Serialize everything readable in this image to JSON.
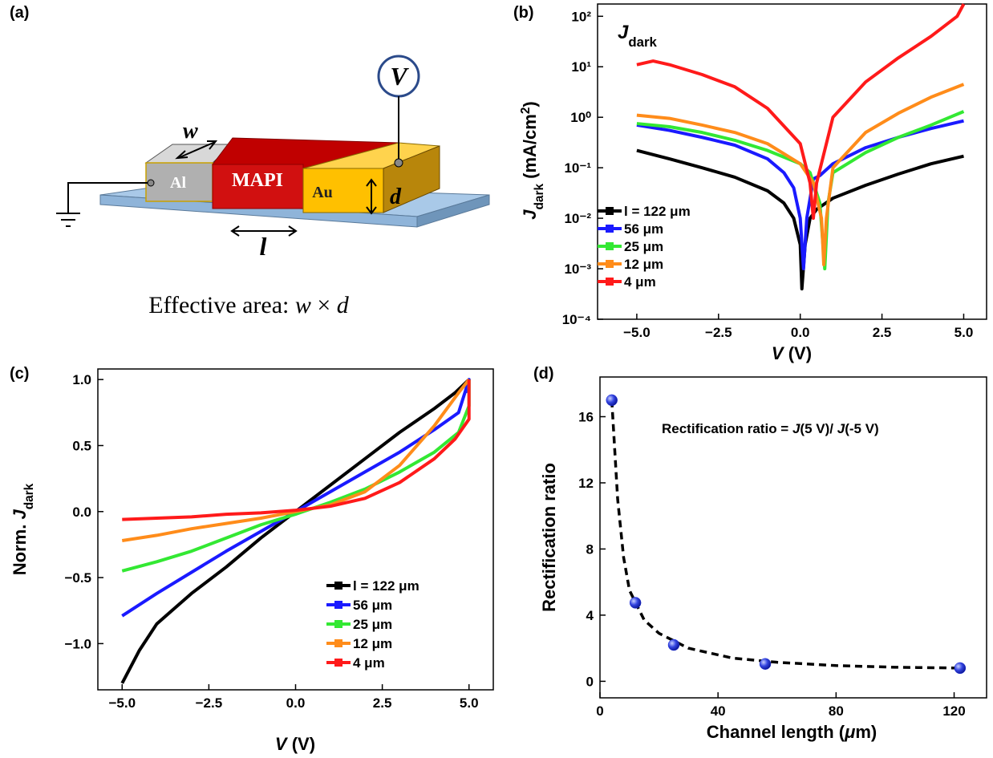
{
  "panel_a": {
    "panel_label": "(a)",
    "voltmeter": "V",
    "width_label": "w",
    "length_label": "l",
    "thickness_label": "d",
    "electrode_left": "Al",
    "active_layer": "MAPI",
    "electrode_right": "Au",
    "caption": [
      "Effective area: ",
      "w",
      " × ",
      "d"
    ]
  },
  "chart_data": [
    {
      "type": "line",
      "panel_label": "(b)",
      "title": [
        "J",
        "dark"
      ],
      "xlabel": [
        "V",
        " (V)"
      ],
      "ylabel": [
        "J",
        "dark",
        " (mA/cm",
        "2",
        ")"
      ],
      "yscale": "log",
      "xlim": [
        -6.2,
        5.7
      ],
      "ylim": [
        0.0001,
        175
      ],
      "xticks": [
        {
          "value": -5,
          "label": "−5.0"
        },
        {
          "value": -2.5,
          "label": "−2.5"
        },
        {
          "value": 0,
          "label": "0.0"
        },
        2.5,
        {
          "value": 5,
          "label": "5.0"
        }
      ],
      "yticks": [
        {
          "value": 0.0001,
          "label": "10⁻⁴"
        },
        {
          "value": 0.001,
          "label": "10⁻³"
        },
        {
          "value": 0.01,
          "label": "10⁻²"
        },
        {
          "value": 0.1,
          "label": "10⁻¹"
        },
        {
          "value": 1,
          "label": "10⁰"
        },
        {
          "value": 10,
          "label": "10¹"
        },
        {
          "value": 100,
          "label": "10²"
        }
      ],
      "legend": "lower-left",
      "series": [
        {
          "name": "l = 122 μm",
          "color": "#000000",
          "x": [
            -5,
            -4,
            -3,
            -2,
            -1,
            -0.5,
            -0.2,
            0,
            0.05,
            0.15,
            0.3,
            0.5,
            1,
            2,
            3,
            4,
            5
          ],
          "values": [
            0.22,
            0.15,
            0.1,
            0.065,
            0.035,
            0.02,
            0.01,
            0.003,
            0.0004,
            0.003,
            0.01,
            0.015,
            0.025,
            0.045,
            0.075,
            0.12,
            0.17
          ]
        },
        {
          "name": "56 μm",
          "color": "#1a1aff",
          "x": [
            -5,
            -4,
            -3,
            -2,
            -1,
            -0.5,
            -0.2,
            0,
            0.1,
            0.2,
            0.4,
            0.6,
            1,
            2,
            3,
            4,
            5
          ],
          "values": [
            0.7,
            0.55,
            0.4,
            0.28,
            0.15,
            0.08,
            0.04,
            0.01,
            0.001,
            0.01,
            0.06,
            0.07,
            0.12,
            0.25,
            0.4,
            0.6,
            0.85
          ]
        },
        {
          "name": "25 μm",
          "color": "#33e833",
          "x": [
            -5,
            -4,
            -3,
            -2,
            -1,
            0,
            0.3,
            0.6,
            0.75,
            0.85,
            1,
            2,
            3,
            4,
            5
          ],
          "values": [
            0.75,
            0.65,
            0.5,
            0.35,
            0.22,
            0.12,
            0.08,
            0.02,
            0.001,
            0.02,
            0.08,
            0.2,
            0.4,
            0.7,
            1.3
          ]
        },
        {
          "name": "12 μm",
          "color": "#ff8c1a",
          "x": [
            -5,
            -4,
            -3,
            -2,
            -1,
            0,
            0.4,
            0.65,
            0.72,
            0.8,
            1,
            2,
            3,
            4,
            5
          ],
          "values": [
            1.1,
            0.95,
            0.7,
            0.5,
            0.3,
            0.12,
            0.05,
            0.01,
            0.0012,
            0.01,
            0.1,
            0.5,
            1.2,
            2.5,
            4.5
          ]
        },
        {
          "name": "4 μm",
          "color": "#ff1a1a",
          "x": [
            -5,
            -4.5,
            -4,
            -3,
            -2,
            -1,
            0,
            0.3,
            0.4,
            0.5,
            1,
            2,
            3,
            4,
            4.8,
            5
          ],
          "values": [
            11,
            13,
            11,
            7,
            4,
            1.5,
            0.3,
            0.05,
            0.01,
            0.05,
            1,
            5,
            15,
            40,
            100,
            175
          ]
        }
      ]
    },
    {
      "type": "line",
      "panel_label": "(c)",
      "xlabel": [
        "V",
        " (V)"
      ],
      "ylabel": [
        "Norm. ",
        "J",
        "dark"
      ],
      "xlim": [
        -5.7,
        5.7
      ],
      "ylim": [
        -1.35,
        1.08
      ],
      "xticks": [
        {
          "value": -5,
          "label": "−5.0"
        },
        {
          "value": -2.5,
          "label": "−2.5"
        },
        {
          "value": 0,
          "label": "0.0"
        },
        2.5,
        {
          "value": 5,
          "label": "5.0"
        }
      ],
      "yticks": [
        {
          "value": -1,
          "label": "−1.0"
        },
        {
          "value": -0.5,
          "label": "−0.5"
        },
        {
          "value": 0,
          "label": "0.0"
        },
        0.5,
        {
          "value": 1,
          "label": "1.0"
        }
      ],
      "legend": "lower-right",
      "series": [
        {
          "name": "l = 122 μm",
          "color": "#000000",
          "x": [
            -5,
            -4.5,
            -4,
            -3,
            -2,
            -1,
            0,
            1,
            2,
            3,
            4,
            4.6,
            5
          ],
          "values": [
            -1.3,
            -1.05,
            -0.85,
            -0.62,
            -0.42,
            -0.2,
            0,
            0.2,
            0.4,
            0.6,
            0.78,
            0.9,
            1
          ]
        },
        {
          "name": "56 μm",
          "color": "#1a1aff",
          "x": [
            -5,
            -4,
            -3,
            -2,
            -1,
            0,
            1,
            2,
            3,
            4,
            4.7,
            5,
            4.9
          ],
          "values": [
            -0.79,
            -0.62,
            -0.46,
            -0.3,
            -0.15,
            0,
            0.15,
            0.3,
            0.45,
            0.62,
            0.75,
            1,
            0.9
          ]
        },
        {
          "name": "25 μm",
          "color": "#33e833",
          "x": [
            -5,
            -4,
            -3,
            -2,
            -1,
            0,
            1,
            2,
            3,
            4,
            4.7,
            5,
            5
          ],
          "values": [
            -0.45,
            -0.38,
            -0.3,
            -0.2,
            -0.1,
            -0.02,
            0.07,
            0.17,
            0.3,
            0.45,
            0.6,
            0.8,
            1
          ]
        },
        {
          "name": "12 μm",
          "color": "#ff8c1a",
          "x": [
            -5,
            -4,
            -3,
            -2,
            -1,
            0,
            1,
            2,
            3,
            4,
            4.7,
            5
          ],
          "values": [
            -0.22,
            -0.18,
            -0.13,
            -0.09,
            -0.05,
            0,
            0.05,
            0.15,
            0.35,
            0.65,
            0.9,
            1
          ]
        },
        {
          "name": "4 μm",
          "color": "#ff1a1a",
          "x": [
            -5,
            -4,
            -3,
            -2,
            -1,
            0,
            1,
            2,
            3,
            4,
            4.6,
            5,
            5
          ],
          "values": [
            -0.06,
            -0.05,
            -0.04,
            -0.02,
            -0.01,
            0.01,
            0.04,
            0.1,
            0.22,
            0.4,
            0.55,
            0.7,
            1
          ]
        }
      ]
    },
    {
      "type": "scatter",
      "panel_label": "(d)",
      "xlabel": [
        "Channel length (",
        "μ",
        "m)"
      ],
      "ylabel": [
        "Rectification ratio"
      ],
      "annotation": [
        "Rectification ratio =  ",
        "J",
        "(5 V)/ ",
        "J",
        "(-5 V)"
      ],
      "xlim": [
        0,
        131
      ],
      "ylim": [
        -1,
        18.4
      ],
      "xticks": [
        0,
        40,
        80,
        120
      ],
      "yticks": [
        0,
        4,
        8,
        12,
        16
      ],
      "series": [
        {
          "color": "#1f2fd8",
          "x": [
            4,
            12,
            25,
            56,
            122
          ],
          "values": [
            17,
            4.75,
            2.2,
            1.05,
            0.8
          ]
        }
      ],
      "fit": {
        "color": "#000000",
        "x": [
          4,
          6,
          8,
          10,
          15,
          20,
          30,
          45,
          60,
          80,
          100,
          122
        ],
        "values": [
          17,
          11,
          7.5,
          5.5,
          3.7,
          2.9,
          2,
          1.4,
          1.15,
          0.95,
          0.85,
          0.8
        ]
      }
    }
  ]
}
